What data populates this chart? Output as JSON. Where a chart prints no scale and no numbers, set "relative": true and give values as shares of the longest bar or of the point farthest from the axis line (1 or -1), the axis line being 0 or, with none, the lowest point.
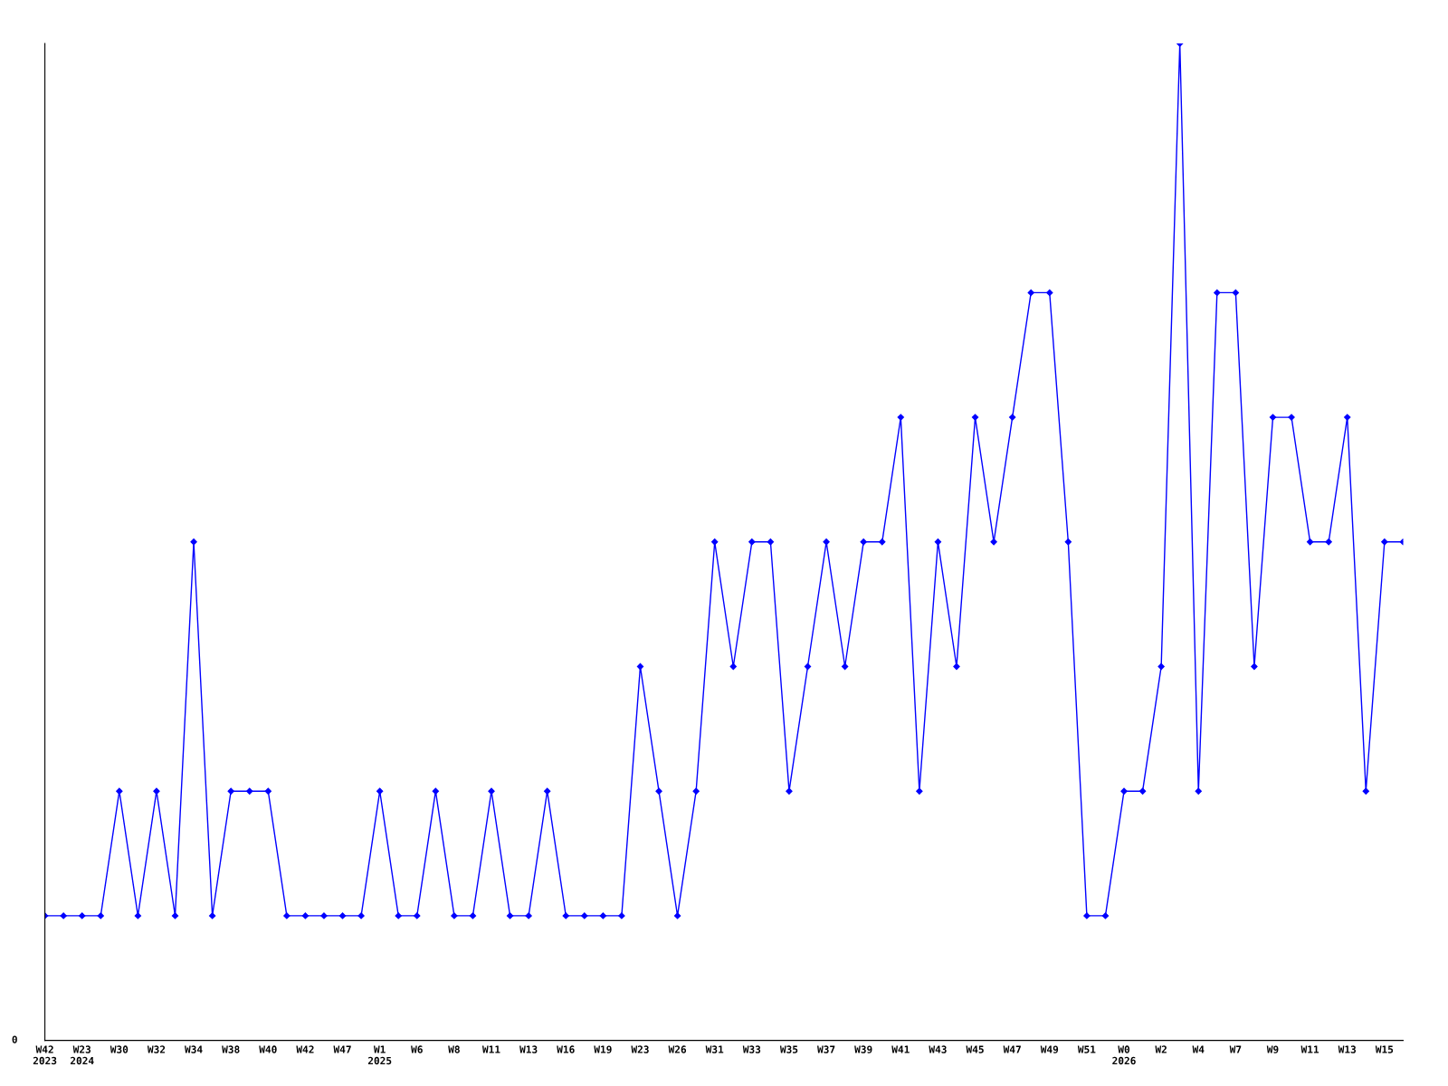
{
  "chart_data": {
    "type": "line",
    "relative": true,
    "marker": "diamond",
    "line_style": "solid",
    "grid": false,
    "categories": [
      "W42\n2023",
      null,
      "W23\n2024",
      null,
      "W30",
      null,
      "W32",
      null,
      "W34",
      null,
      "W38",
      null,
      "W40",
      null,
      "W42",
      null,
      "W47",
      null,
      "W1\n2025",
      null,
      "W6",
      null,
      "W8",
      null,
      "W11",
      null,
      "W13",
      null,
      "W16",
      null,
      "W19",
      null,
      "W23",
      null,
      "W26",
      null,
      "W31",
      null,
      "W33",
      null,
      "W35",
      null,
      "W37",
      null,
      "W39",
      null,
      "W41",
      null,
      "W43",
      null,
      "W45",
      null,
      "W47",
      null,
      "W49",
      null,
      "W51",
      null,
      "W0\n2026",
      null,
      "W2",
      null,
      "W4",
      null,
      "W7",
      null,
      "W9",
      null,
      "W11",
      null,
      "W13",
      null,
      "W15",
      null
    ],
    "series": [
      {
        "color": "#0000ff",
        "values": [
          0.125,
          0.125,
          0.125,
          0.125,
          0.25,
          0.125,
          0.25,
          0.125,
          0.5,
          0.125,
          0.25,
          0.25,
          0.25,
          0.125,
          0.125,
          0.125,
          0.125,
          0.125,
          0.25,
          0.125,
          0.125,
          0.25,
          0.125,
          0.125,
          0.25,
          0.125,
          0.125,
          0.25,
          0.125,
          0.125,
          0.125,
          0.125,
          0.375,
          0.25,
          0.125,
          0.25,
          0.5,
          0.375,
          0.5,
          0.5,
          0.25,
          0.375,
          0.5,
          0.375,
          0.5,
          0.5,
          0.625,
          0.25,
          0.5,
          0.375,
          0.625,
          0.5,
          0.625,
          0.75,
          0.75,
          0.5,
          0.125,
          0.125,
          0.25,
          0.25,
          0.375,
          1,
          0.25,
          0.75,
          0.75,
          0.375,
          0.625,
          0.625,
          0.5,
          0.5,
          0.625,
          0.25,
          0.5,
          0.5
        ]
      }
    ],
    "annotations": [
      "0"
    ]
  }
}
